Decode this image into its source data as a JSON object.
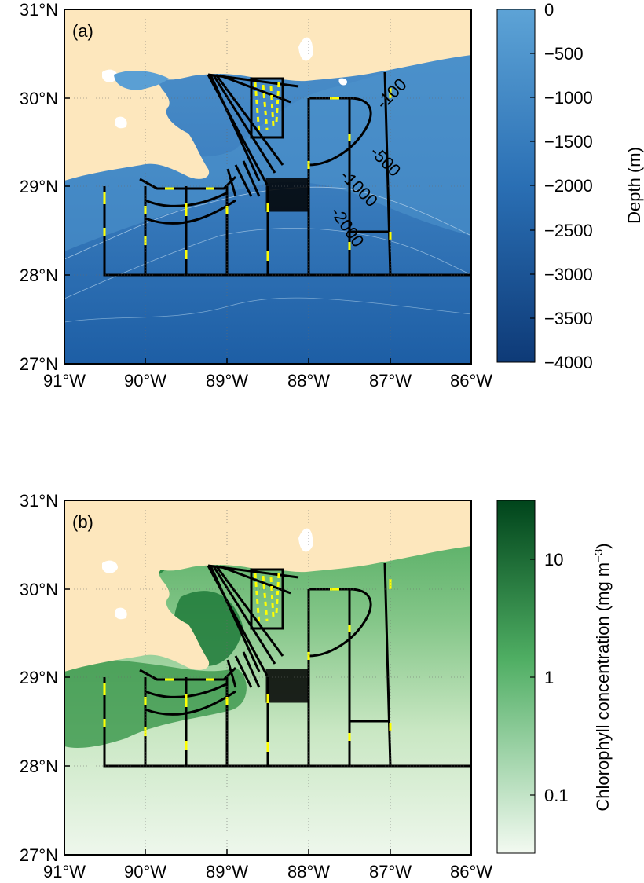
{
  "panels": [
    {
      "label": "(a)",
      "x_ticks": [
        "91°W",
        "90°W",
        "89°W",
        "88°W",
        "87°W",
        "86°W"
      ],
      "y_ticks": [
        "31°N",
        "30°N",
        "29°N",
        "28°N",
        "27°N"
      ],
      "colorbar": {
        "label": "Depth (m)",
        "ticks": [
          "0",
          "−500",
          "−1000",
          "−1500",
          "−2000",
          "−2500",
          "−3000",
          "−3500",
          "−4000"
        ],
        "colors": [
          "#5b9fd4",
          "#0f3f7e"
        ]
      },
      "contour_labels": [
        "-100",
        "-500",
        "-1000",
        "-2000"
      ]
    },
    {
      "label": "(b)",
      "x_ticks": [
        "91°W",
        "90°W",
        "89°W",
        "88°W",
        "87°W",
        "86°W"
      ],
      "y_ticks": [
        "31°N",
        "30°N",
        "29°N",
        "28°N",
        "27°N"
      ],
      "colorbar": {
        "label": "Chlorophyll concentration (mg m",
        "label_sup": "−3",
        "label_end": ")",
        "ticks": [
          "10",
          "1",
          "0.1"
        ],
        "colors": [
          "#f4faf2",
          "#00471b"
        ]
      }
    }
  ],
  "colors": {
    "land": "#fde7bd",
    "track": "#000000",
    "track_highlight": "#ffff00"
  },
  "chart_data": {
    "type": "map",
    "lon_range": [
      -91,
      -86
    ],
    "lat_range": [
      27,
      31
    ],
    "grid": true
  }
}
